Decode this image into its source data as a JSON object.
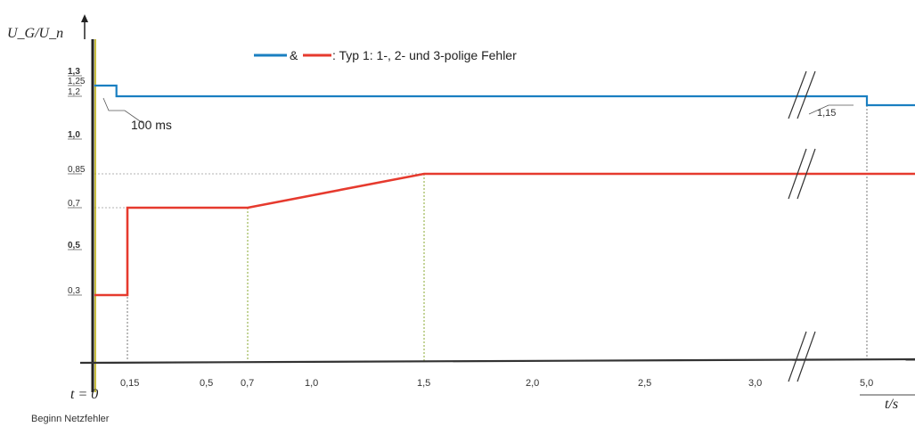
{
  "chart_data": {
    "type": "line",
    "ylabel": "U_G/U_n",
    "xlabel": "t/s",
    "xlim": [
      0,
      5.3
    ],
    "ylim": [
      0,
      1.35
    ],
    "x_axis_break": [
      3.1,
      5.0
    ],
    "y_ticks": [
      "1,3",
      "1,25",
      "1,2",
      "1,0",
      "0,85",
      "0,7",
      "0,5",
      "0,3"
    ],
    "y_tick_values": [
      1.3,
      1.25,
      1.2,
      1.0,
      0.85,
      0.7,
      0.5,
      0.3
    ],
    "x_ticks": [
      "0,15",
      "0,5",
      "0,7",
      "1,0",
      "1,5",
      "2,0",
      "2,5",
      "3,0",
      "5,0"
    ],
    "x_tick_values": [
      0.15,
      0.5,
      0.7,
      1.0,
      1.5,
      2.0,
      2.5,
      3.0,
      5.0
    ],
    "legend": {
      "joiner": "&",
      "text": ": Typ 1: 1-, 2- und 3-polige Fehler"
    },
    "series": [
      {
        "color": "#1a7fc1",
        "points": [
          [
            0,
            1.25
          ],
          [
            0.1,
            1.25
          ],
          [
            0.1,
            1.2
          ],
          [
            5.0,
            1.2
          ],
          [
            5.0,
            1.15
          ],
          [
            5.3,
            1.15
          ]
        ]
      },
      {
        "color": "#e63a2e",
        "points": [
          [
            0,
            0.3
          ],
          [
            0.15,
            0.3
          ],
          [
            0.15,
            0.7
          ],
          [
            0.7,
            0.7
          ],
          [
            1.5,
            0.85
          ],
          [
            5.3,
            0.85
          ]
        ]
      }
    ],
    "annotations": {
      "t0_label": "t = 0",
      "fault_label": "Beginn Netzfehler",
      "duration_label": "100 ms",
      "value_label": "1,15"
    }
  },
  "colors": {
    "t0_line": "#b5a800"
  }
}
